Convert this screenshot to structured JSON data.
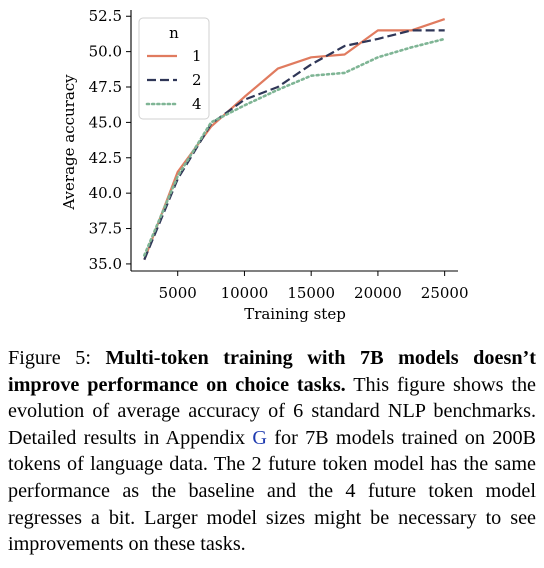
{
  "chart_data": {
    "type": "line",
    "title": "",
    "xlabel": "Training step",
    "ylabel": "Average accuracy",
    "xlim": [
      1500,
      26000
    ],
    "ylim": [
      34.5,
      52.8
    ],
    "xticks": [
      5000,
      10000,
      15000,
      20000,
      25000
    ],
    "xtick_labels": [
      "5000",
      "10000",
      "15000",
      "20000",
      "25000"
    ],
    "yticks": [
      35.0,
      37.5,
      40.0,
      42.5,
      45.0,
      47.5,
      50.0,
      52.5
    ],
    "ytick_labels": [
      "35.0",
      "37.5",
      "40.0",
      "42.5",
      "45.0",
      "47.5",
      "50.0",
      "52.5"
    ],
    "grid": false,
    "legend_title": "n",
    "legend_position": "top-left",
    "series": [
      {
        "name": "1",
        "color": "#e07b5f",
        "style": "solid",
        "x": [
          2500,
          5000,
          7500,
          10000,
          12500,
          15000,
          17500,
          20000,
          22500,
          25000
        ],
        "y": [
          35.3,
          41.5,
          44.7,
          46.8,
          48.8,
          49.6,
          49.8,
          51.5,
          51.5,
          52.3
        ]
      },
      {
        "name": "2",
        "color": "#2f3657",
        "style": "dashed",
        "x": [
          2500,
          5000,
          7500,
          10000,
          12500,
          15000,
          17500,
          20000,
          22500,
          25000
        ],
        "y": [
          35.3,
          41.0,
          44.9,
          46.6,
          47.5,
          49.1,
          50.4,
          50.9,
          51.5,
          51.5
        ]
      },
      {
        "name": "4",
        "color": "#7fb595",
        "style": "dotted",
        "x": [
          2500,
          5000,
          7500,
          10000,
          12500,
          15000,
          17500,
          20000,
          22500,
          25000
        ],
        "y": [
          35.6,
          41.2,
          45.0,
          46.2,
          47.3,
          48.3,
          48.5,
          49.6,
          50.3,
          50.9
        ]
      }
    ]
  },
  "caption": {
    "label": "Figure 5:",
    "bold": "Multi-token training with 7B models doesn’t improve performance on choice tasks.",
    "text_before_ref": "This figure shows the evolution of average accuracy of 6 standard NLP benchmarks.  Detailed results in Appendix",
    "ref": "G",
    "text_after_ref": "for 7B models trained on 200B tokens of language data.  The 2 future token model has the same performance as the baseline and the 4 future token model regresses a bit. Larger model sizes might be necessary to see improvements on these tasks."
  }
}
